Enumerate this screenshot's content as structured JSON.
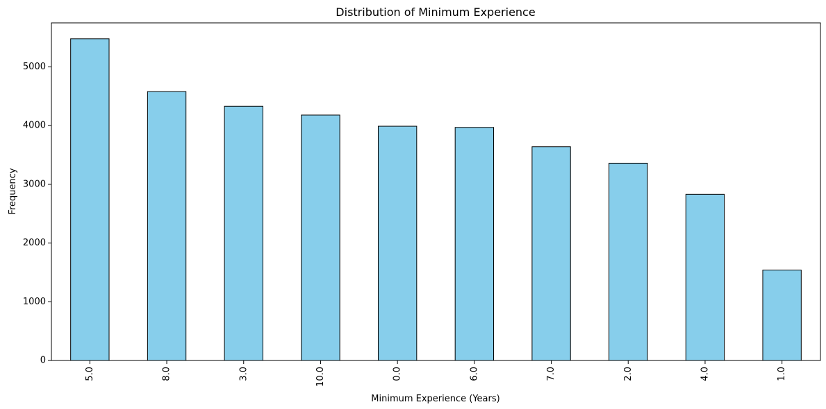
{
  "chart_data": {
    "type": "bar",
    "title": "Distribution of Minimum Experience",
    "xlabel": "Minimum Experience (Years)",
    "ylabel": "Frequency",
    "categories": [
      "5.0",
      "8.0",
      "3.0",
      "10.0",
      "0.0",
      "6.0",
      "7.0",
      "2.0",
      "4.0",
      "1.0"
    ],
    "values": [
      5480,
      4580,
      4330,
      4180,
      3990,
      3970,
      3640,
      3360,
      2830,
      1540
    ],
    "ylim": [
      0,
      5750
    ],
    "yticks": [
      0,
      1000,
      2000,
      3000,
      4000,
      5000
    ],
    "tick_label_rotation": "vertical",
    "grid": false,
    "legend": "none",
    "colors": {
      "bar_fill": "#87ceeb",
      "bar_edge": "#000000",
      "axes": "#000000",
      "background": "#ffffff"
    }
  }
}
